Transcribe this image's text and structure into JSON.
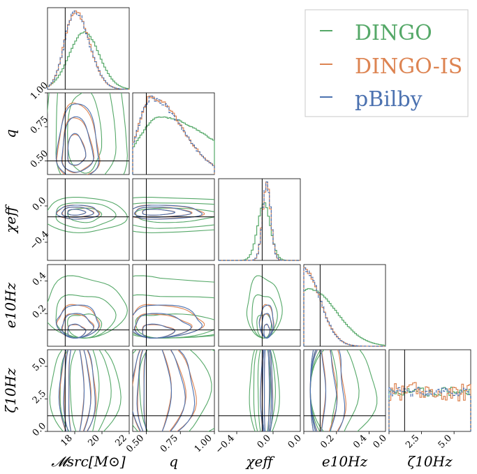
{
  "colors": {
    "dingo": "#55a868",
    "dingo_is": "#dd8452",
    "pbilby": "#4c72b0",
    "truth": "#000000"
  },
  "legend": {
    "placement": "top-right",
    "entries": [
      {
        "label": "DINGO",
        "color": "#55a868"
      },
      {
        "label": "DINGO-IS",
        "color": "#dd8452"
      },
      {
        "label": "pBilby",
        "color": "#4c72b0"
      }
    ]
  },
  "chart_data": {
    "type": "corner",
    "series": [
      {
        "name": "DINGO"
      },
      {
        "name": "DINGO-IS"
      },
      {
        "name": "pBilby"
      }
    ],
    "parameters": [
      {
        "key": "Mc",
        "label": "𝓜src[M⊙]",
        "range": [
          16,
          22
        ],
        "truth": 17.3,
        "ticks": [
          {
            "v": 18,
            "t": "18"
          },
          {
            "v": 20,
            "t": "20"
          },
          {
            "v": 22,
            "t": "22"
          }
        ],
        "dists": [
          {
            "m": 18.7,
            "s": 1.1,
            "skew": 1.0
          },
          {
            "m": 18.0,
            "s": 0.75,
            "skew": 1.4
          },
          {
            "m": 18.0,
            "s": 0.75,
            "skew": 1.4
          }
        ]
      },
      {
        "key": "q",
        "label": "q",
        "range": [
          0.4,
          1.0
        ],
        "truth": 0.5,
        "ticks": [
          {
            "v": 0.5,
            "t": "0.50"
          },
          {
            "v": 0.75,
            "t": "0.75"
          },
          {
            "v": 1.0,
            "t": "1.00"
          }
        ],
        "dists": [
          {
            "m": 0.6,
            "s": 0.16,
            "skew": 2.4
          },
          {
            "m": 0.54,
            "s": 0.1,
            "skew": 2.2
          },
          {
            "m": 0.54,
            "s": 0.1,
            "skew": 2.2
          }
        ]
      },
      {
        "key": "chi_eff",
        "label": "χeff",
        "range": [
          -0.6,
          0.3
        ],
        "truth": -0.12,
        "ticks": [
          {
            "v": -0.4,
            "t": "−0.4"
          },
          {
            "v": 0.0,
            "t": "0.0"
          }
        ],
        "dists": [
          {
            "m": -0.1,
            "s": 0.07,
            "skew": 1.0
          },
          {
            "m": -0.07,
            "s": 0.045,
            "skew": 1.0
          },
          {
            "m": -0.07,
            "s": 0.045,
            "skew": 1.0
          }
        ]
      },
      {
        "key": "e10",
        "label": "e10Hz",
        "range": [
          0.0,
          0.5
        ],
        "truth": 0.1,
        "ticks": [
          {
            "v": 0.0,
            "t": "0.0"
          },
          {
            "v": 0.2,
            "t": "0.2"
          },
          {
            "v": 0.4,
            "t": "0.4"
          }
        ],
        "dists": [
          {
            "m": 0.04,
            "s": 0.16,
            "skew": 1.0
          },
          {
            "m": 0.0,
            "s": 0.1,
            "skew": 1.0
          },
          {
            "m": 0.0,
            "s": 0.1,
            "skew": 1.0
          }
        ]
      },
      {
        "key": "zeta10",
        "label": "ζ10Hz",
        "range": [
          0.0,
          6.28
        ],
        "truth": 1.2,
        "ticks": [
          {
            "v": 0.0,
            "t": "0.0"
          },
          {
            "v": 2.5,
            "t": "2.5"
          },
          {
            "v": 5.0,
            "t": "5.0"
          }
        ],
        "dists": [
          {
            "m": 3.14,
            "s": 0,
            "skew": 1.0
          },
          {
            "m": 3.14,
            "s": 0,
            "skew": 1.0
          },
          {
            "m": 3.14,
            "s": 0,
            "skew": 1.0
          }
        ]
      }
    ],
    "y_ticks": {
      "q": [
        {
          "v": 0.5,
          "t": "0.50"
        },
        {
          "v": 0.75,
          "t": "0.75"
        },
        {
          "v": 1.0,
          "t": "1.00"
        }
      ],
      "chi_eff": [
        {
          "v": -0.4,
          "t": "−0.4"
        },
        {
          "v": 0.0,
          "t": "0.0"
        }
      ],
      "e10": [
        {
          "v": 0.2,
          "t": "0.2"
        },
        {
          "v": 0.4,
          "t": "0.4"
        }
      ],
      "zeta10": [
        {
          "v": 0.0,
          "t": "0.0"
        },
        {
          "v": 2.5,
          "t": "2.5"
        },
        {
          "v": 5.0,
          "t": "5.0"
        }
      ]
    },
    "y_labels": [
      "q",
      "χeff",
      "e10Hz",
      "ζ10Hz"
    ]
  }
}
